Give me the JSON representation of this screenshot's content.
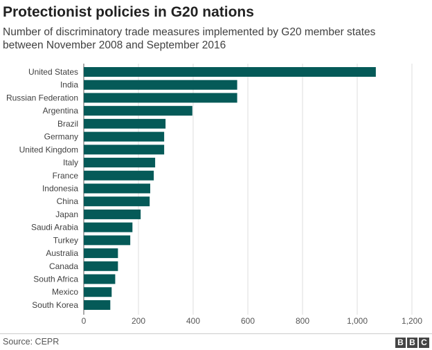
{
  "chart_data": {
    "type": "bar",
    "orientation": "horizontal",
    "title": "Protectionist policies in G20 nations",
    "subtitle": "Number of discriminatory trade measures implemented by G20 member states between November 2008 and September 2016",
    "categories": [
      "United States",
      "India",
      "Russian Federation",
      "Argentina",
      "Brazil",
      "Germany",
      "United Kingdom",
      "Italy",
      "France",
      "Indonesia",
      "China",
      "Japan",
      "Saudi Arabia",
      "Turkey",
      "Australia",
      "Canada",
      "South Africa",
      "Mexico",
      "South Korea"
    ],
    "values": [
      1068,
      561,
      561,
      397,
      299,
      294,
      294,
      261,
      256,
      243,
      241,
      208,
      178,
      170,
      125,
      125,
      115,
      102,
      97
    ],
    "xlim": [
      0,
      1200
    ],
    "xticks": [
      0,
      200,
      400,
      600,
      800,
      1000,
      1200
    ],
    "xtick_labels": [
      "0",
      "200",
      "400",
      "600",
      "800",
      "1,000",
      "1,200"
    ],
    "grid": true,
    "bar_color": "#055a58",
    "xlabel": "",
    "ylabel": ""
  },
  "footer": {
    "source": "Source: CEPR",
    "logo": [
      "B",
      "B",
      "C"
    ]
  }
}
